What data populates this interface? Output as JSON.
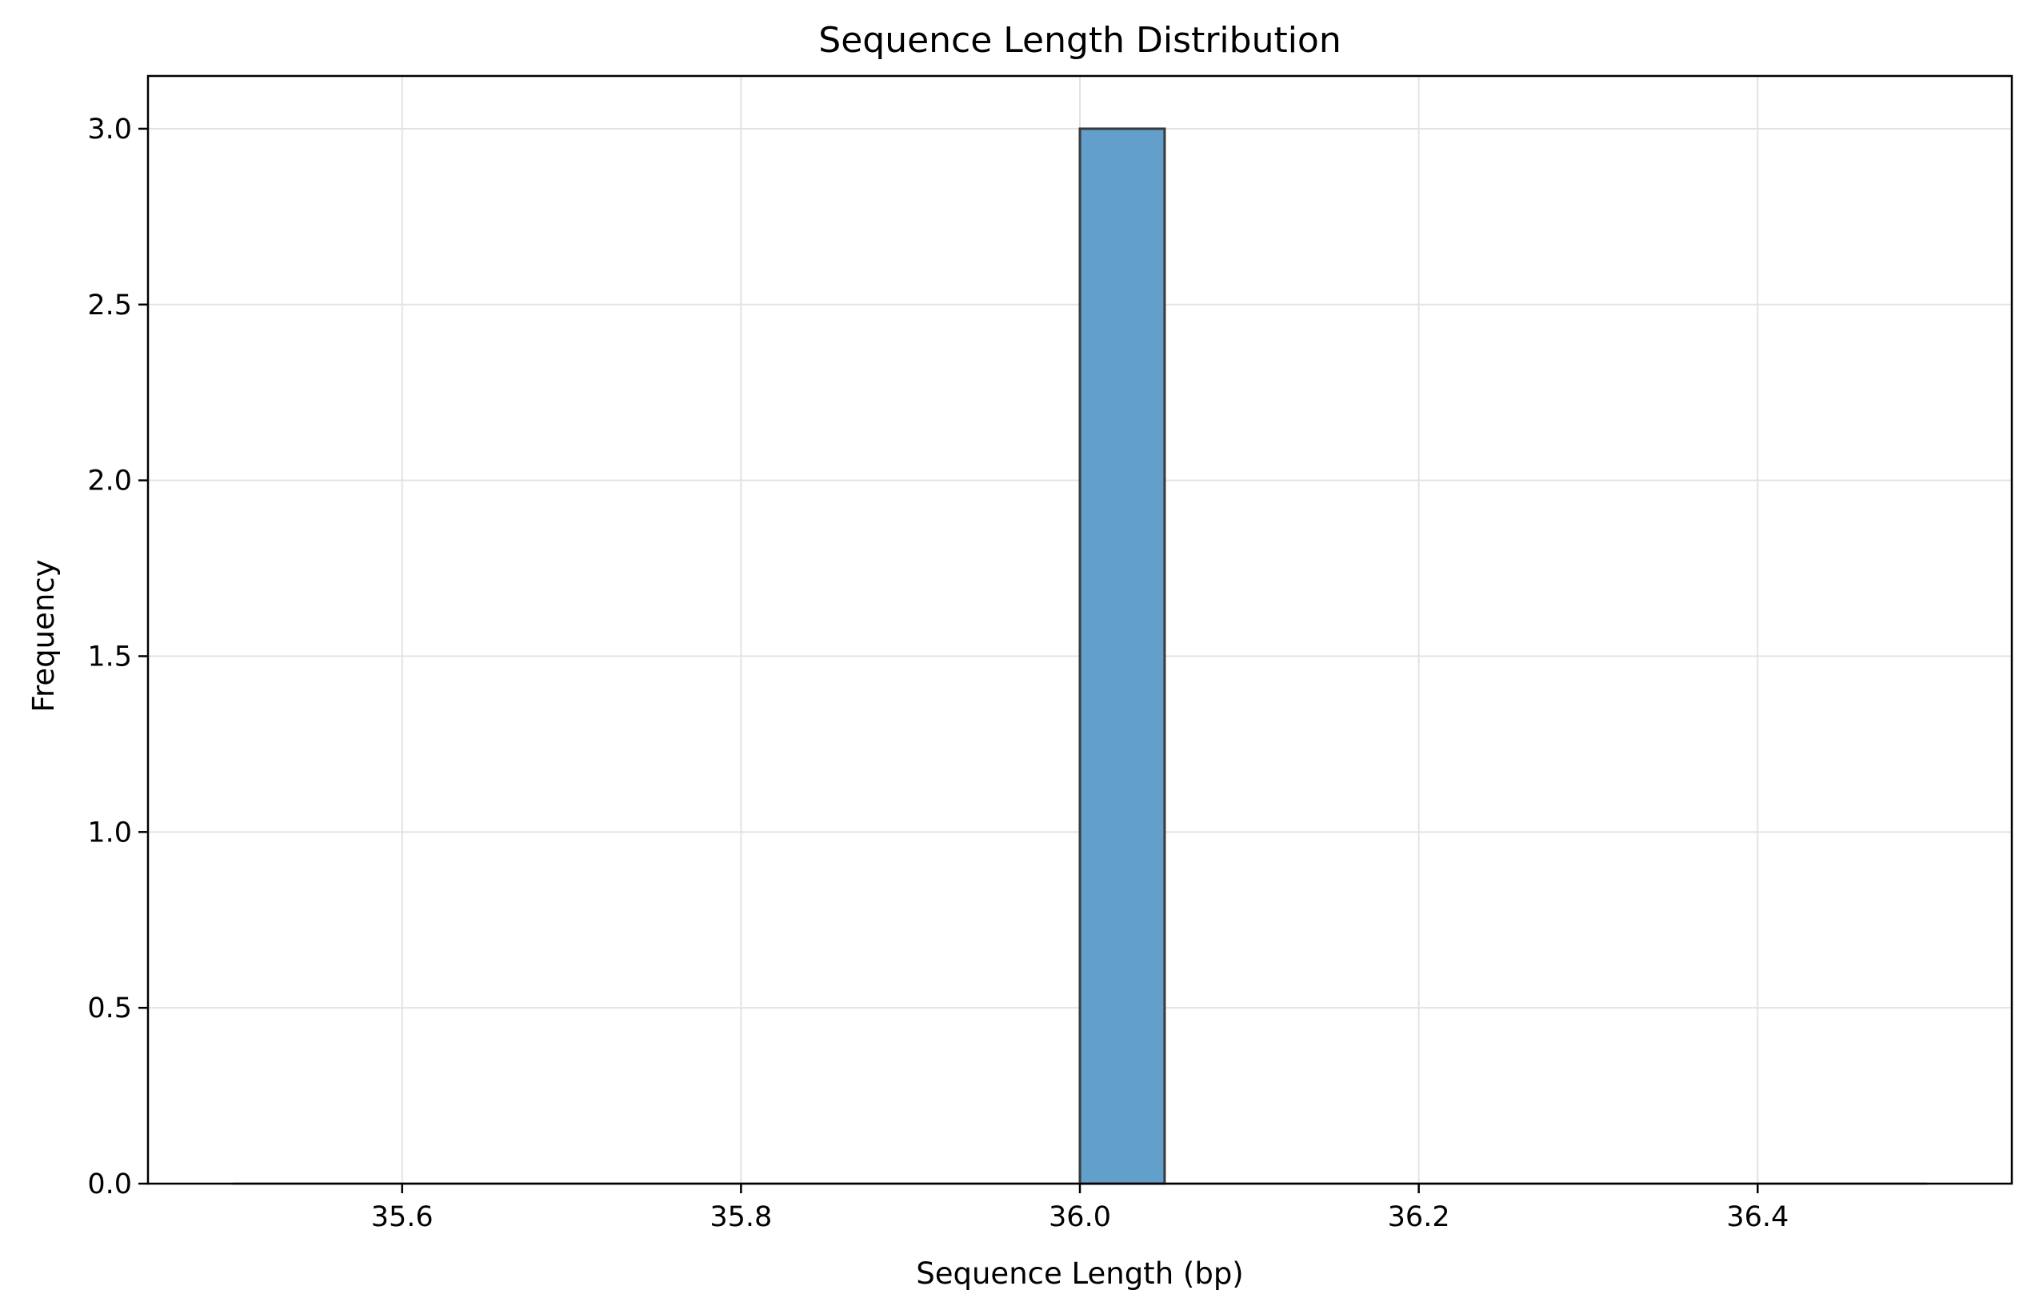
{
  "chart_data": {
    "type": "bar",
    "title": "Sequence Length Distribution",
    "xlabel": "Sequence Length (bp)",
    "ylabel": "Frequency",
    "xlim": [
      35.45,
      36.55
    ],
    "ylim": [
      0,
      3.15
    ],
    "xticks": [
      "35.6",
      "35.8",
      "36.0",
      "36.2",
      "36.4"
    ],
    "xtick_values": [
      35.6,
      35.8,
      36.0,
      36.2,
      36.4
    ],
    "yticks": [
      "0.0",
      "0.5",
      "1.0",
      "1.5",
      "2.0",
      "2.5",
      "3.0"
    ],
    "ytick_values": [
      0,
      0.5,
      1.0,
      1.5,
      2.0,
      2.5,
      3.0
    ],
    "bins_range": [
      35.5,
      36.5
    ],
    "bins": [
      {
        "start": 36.0,
        "end": 36.05,
        "count": 3
      }
    ],
    "grid": true,
    "bar_color": "#62a0cb",
    "edge_color": "#3a3a3a"
  }
}
